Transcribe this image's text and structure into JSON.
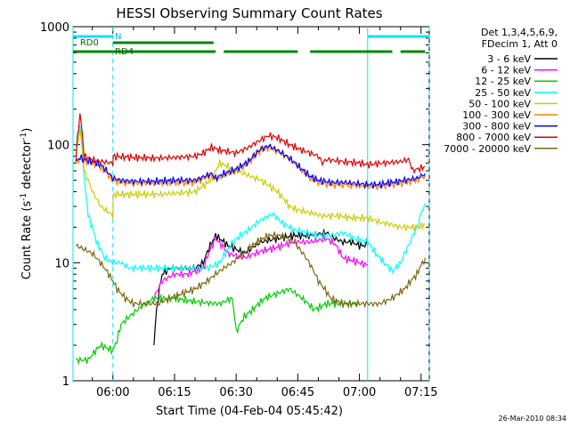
{
  "chart_data": {
    "type": "line",
    "title": "HESSI Observing Summary Count Rates",
    "xlabel": "Start Time (04-Feb-04 05:45:42)",
    "ylabel": "Count Rate (s⁻¹ detector⁻¹)",
    "ylabel_parts": {
      "main": "Count Rate (s",
      "sup1": "-1",
      "mid": " detector",
      "sup2": "-1",
      "end": ")"
    },
    "yscale": "log",
    "ylim": [
      1,
      1000
    ],
    "xlim_minutes": [
      -9.7,
      77
    ],
    "x_ticks": [
      {
        "min": 0,
        "label": "06:00"
      },
      {
        "min": 15,
        "label": "06:15"
      },
      {
        "min": 30,
        "label": "06:30"
      },
      {
        "min": 45,
        "label": "06:45"
      },
      {
        "min": 60,
        "label": "07:00"
      },
      {
        "min": 75,
        "label": "07:15"
      }
    ],
    "y_ticks": [
      {
        "value": 1,
        "label": "1"
      },
      {
        "value": 10,
        "label": "10"
      },
      {
        "value": 100,
        "label": "100"
      },
      {
        "value": 1000,
        "label": "1000"
      }
    ],
    "legend_header": [
      "Det 1,3,4,5,6,9,",
      "FDecim 1, Att 0"
    ],
    "legend_position": "right",
    "timestamp": "26-Mar-2010 08:34",
    "markers": {
      "night_label": "N",
      "saa_label": "RD0",
      "rd4_label": "RD4"
    },
    "night_segments": [
      [
        -9.7,
        0
      ],
      [
        62,
        77
      ]
    ],
    "rd0_segments": [
      [
        0,
        24.5
      ]
    ],
    "rd4_segments": [
      [
        -9.7,
        0
      ],
      [
        0,
        25
      ],
      [
        27,
        45
      ],
      [
        48,
        68
      ],
      [
        70,
        76
      ]
    ],
    "orbit_lines_solid": [
      -9.7,
      62
    ],
    "orbit_lines_dashed": [
      0,
      77
    ],
    "series": [
      {
        "name": "3 - 6 keV",
        "color": "#000000",
        "x": [
          10,
          12,
          14,
          18,
          20,
          22,
          25,
          28,
          32,
          36,
          40,
          44,
          48,
          52,
          54,
          56,
          58,
          60,
          62
        ],
        "values": [
          2.0,
          8.0,
          9.0,
          9.0,
          9.0,
          10.0,
          17.0,
          14.0,
          12.0,
          15.0,
          16.0,
          17.0,
          17.0,
          18.0,
          16.0,
          15.0,
          15.0,
          14.0,
          14.0
        ]
      },
      {
        "name": "6 - 12 keV",
        "color": "#ff00ff",
        "x": [
          10,
          12,
          15,
          18,
          20,
          22,
          25,
          28,
          32,
          36,
          40,
          44,
          48,
          52,
          54,
          56,
          60,
          62
        ],
        "values": [
          5.0,
          7.0,
          8.0,
          8.0,
          8.5,
          9.0,
          16.0,
          12.0,
          11.0,
          12.5,
          13.5,
          15.0,
          15.0,
          16.0,
          14.5,
          11.0,
          10.0,
          9.5
        ]
      },
      {
        "name": "12 - 25 keV",
        "color": "#00cc00",
        "x": [
          -9,
          -6,
          -3,
          0,
          1,
          2,
          4,
          6,
          8,
          10,
          12,
          15,
          18,
          22,
          26,
          29,
          30,
          32,
          34,
          37,
          40,
          43,
          46,
          49,
          52,
          54,
          56,
          58,
          60
        ],
        "values": [
          1.5,
          1.5,
          2.0,
          1.8,
          2.2,
          3.0,
          3.5,
          4.0,
          4.5,
          5.0,
          5.0,
          5.0,
          4.8,
          4.6,
          4.5,
          5.0,
          2.6,
          3.5,
          4.0,
          5.0,
          5.5,
          6.0,
          5.0,
          4.0,
          4.5,
          4.5,
          4.5,
          4.5,
          4.5
        ]
      },
      {
        "name": "25 - 50 keV",
        "color": "#00ffff",
        "x": [
          -9,
          -8,
          -7,
          -6,
          -4,
          -2,
          0,
          2,
          4,
          6,
          8,
          10,
          12,
          14,
          17,
          20,
          23,
          26,
          28,
          30,
          33,
          36,
          39,
          41,
          44,
          47,
          50,
          53,
          56,
          59,
          62,
          64,
          66,
          68,
          70,
          72,
          74,
          76
        ],
        "values": [
          90,
          150,
          50,
          25,
          15,
          11,
          10,
          10,
          9,
          9,
          9,
          9,
          9,
          9,
          9,
          9,
          9,
          10,
          13,
          16,
          19,
          23,
          26,
          22,
          19,
          18,
          17,
          17,
          18,
          16,
          15,
          12,
          10,
          8.5,
          10,
          14,
          20,
          32
        ]
      },
      {
        "name": "50 - 100 keV",
        "color": "#cccc00",
        "x": [
          -9,
          -8,
          -7,
          -5,
          -3,
          0,
          0.1,
          4,
          8,
          12,
          16,
          20,
          22,
          24,
          26,
          30,
          33,
          36,
          40,
          43,
          45,
          47,
          49,
          51,
          53,
          55,
          58,
          62,
          65,
          68,
          70,
          72,
          73,
          74,
          76
        ],
        "values": [
          80,
          130,
          60,
          40,
          30,
          25,
          38,
          38,
          38,
          38,
          39,
          40,
          45,
          50,
          70,
          60,
          55,
          50,
          40,
          30,
          28,
          27,
          26,
          25,
          25,
          25,
          24,
          24,
          22,
          21,
          20,
          20,
          20,
          20,
          21
        ]
      },
      {
        "name": "100 - 300 keV",
        "color": "#ff7f00",
        "x": [
          -9,
          -8,
          -7,
          -5,
          -3,
          0,
          2,
          5,
          10,
          15,
          20,
          24,
          25,
          27,
          30,
          33,
          36,
          38,
          40,
          43,
          46,
          48,
          50,
          53,
          56,
          59,
          62,
          65,
          68,
          71,
          74,
          76
        ],
        "values": [
          70,
          75,
          72,
          70,
          65,
          50,
          48,
          47,
          47,
          48,
          48,
          55,
          50,
          55,
          60,
          70,
          90,
          95,
          88,
          75,
          60,
          52,
          48,
          46,
          46,
          45,
          44,
          44,
          46,
          48,
          50,
          55
        ]
      },
      {
        "name": "300 - 800 keV",
        "color": "#0000ff",
        "x": [
          -9,
          -8,
          -7,
          -5,
          -3,
          0,
          2,
          5,
          10,
          15,
          20,
          24,
          25,
          27,
          30,
          33,
          36,
          38,
          40,
          43,
          46,
          48,
          50,
          53,
          56,
          59,
          62,
          65,
          68,
          71,
          74,
          76
        ],
        "values": [
          72,
          78,
          75,
          72,
          68,
          52,
          50,
          49,
          49,
          50,
          50,
          57,
          52,
          57,
          62,
          72,
          92,
          98,
          90,
          77,
          62,
          54,
          50,
          48,
          48,
          47,
          46,
          46,
          48,
          50,
          52,
          57
        ]
      },
      {
        "name": "800 - 7000 keV",
        "color": "#dd0000",
        "x": [
          -9,
          -8,
          -7,
          -5,
          -3,
          0,
          0.1,
          5,
          10,
          15,
          20,
          22,
          24,
          26,
          30,
          33,
          36,
          38,
          40,
          43,
          46,
          48,
          50,
          51,
          52,
          56,
          60,
          62,
          66,
          70,
          72,
          73,
          74,
          76
        ],
        "values": [
          75,
          180,
          80,
          75,
          72,
          70,
          80,
          78,
          77,
          78,
          80,
          85,
          95,
          90,
          85,
          95,
          110,
          120,
          115,
          100,
          90,
          85,
          80,
          70,
          75,
          72,
          70,
          68,
          70,
          72,
          75,
          60,
          62,
          65
        ]
      },
      {
        "name": "7000 - 20000 keV",
        "color": "#7a6a10",
        "x": [
          -9,
          -7,
          -5,
          -3,
          -1,
          1,
          3,
          5,
          8,
          11,
          14,
          17,
          20,
          23,
          26,
          29,
          32,
          35,
          38,
          41,
          44,
          47,
          50,
          53,
          56,
          59,
          62,
          65,
          68,
          71,
          74,
          76
        ],
        "values": [
          14,
          13,
          12,
          10,
          8,
          6,
          5,
          4.5,
          4.5,
          4.5,
          5,
          5.5,
          6,
          7,
          8.5,
          10,
          12,
          15,
          17,
          17,
          15,
          11,
          7,
          5,
          4.5,
          4.5,
          4.5,
          4.5,
          5,
          6,
          8,
          11
        ]
      }
    ]
  }
}
